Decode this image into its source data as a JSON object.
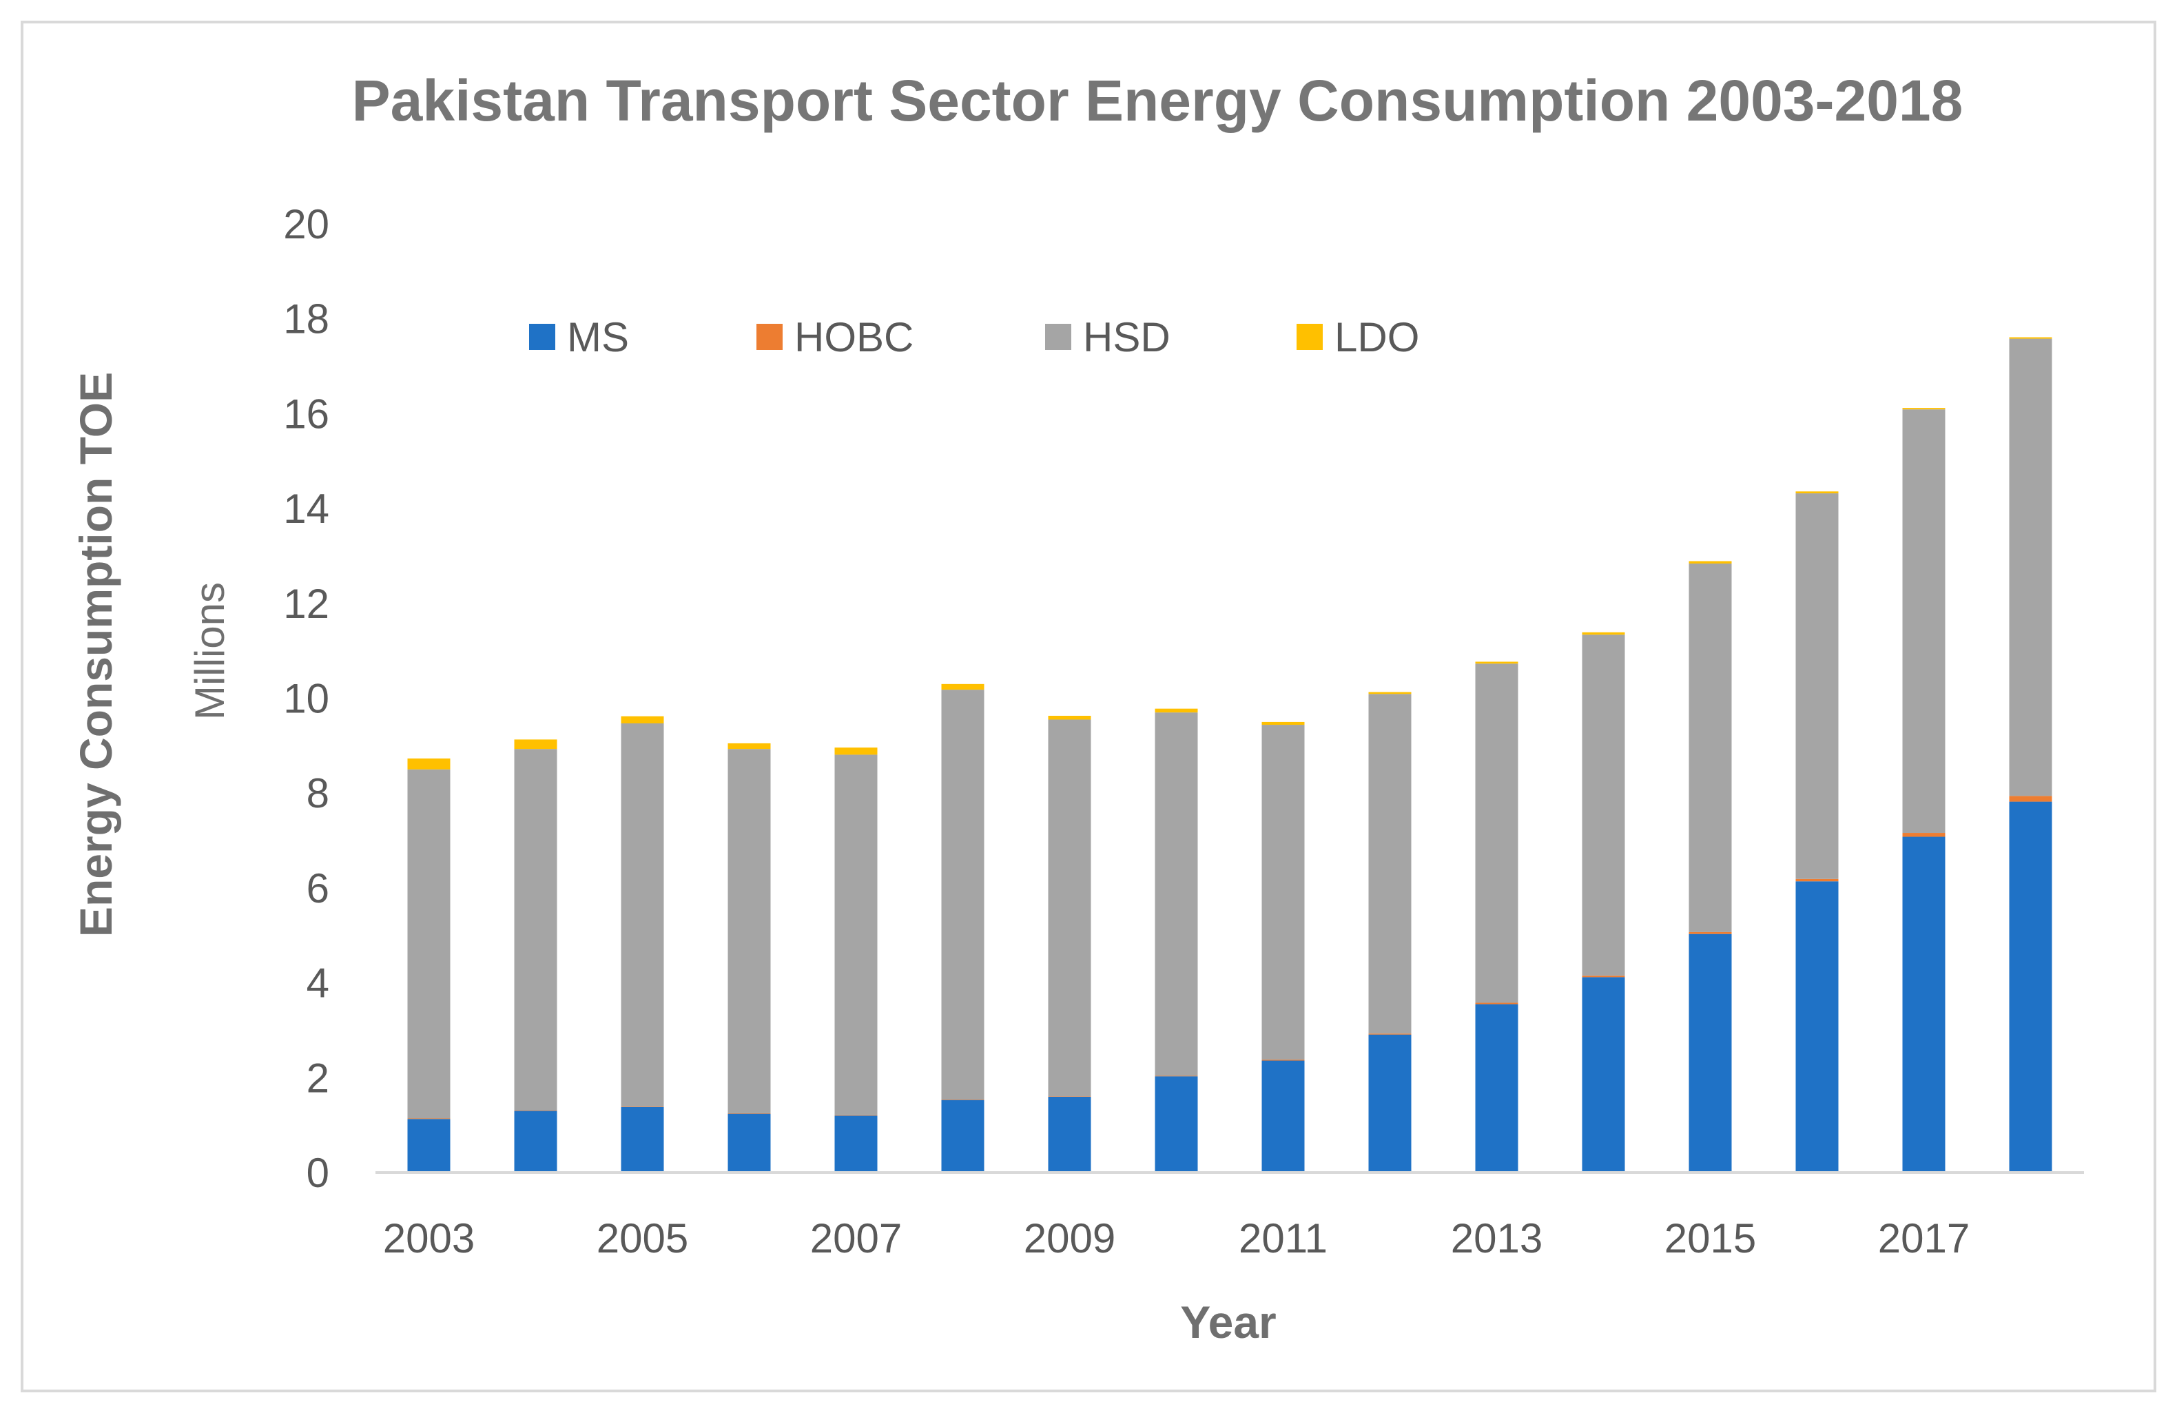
{
  "chart_data": {
    "type": "bar",
    "stacked": true,
    "title": "Pakistan Transport Sector Energy Consumption 2003-2018",
    "xlabel": "Year",
    "ylabel": "Energy Consumption TOE",
    "y_unit_label": "Millions",
    "ylim": [
      0,
      20
    ],
    "yticks": [
      0,
      2,
      4,
      6,
      8,
      10,
      12,
      14,
      16,
      18,
      20
    ],
    "grid": false,
    "legend_position": "top",
    "categories": [
      "2003",
      "2004",
      "2005",
      "2006",
      "2007",
      "2008",
      "2009",
      "2010",
      "2011",
      "2012",
      "2013",
      "2014",
      "2015",
      "2016",
      "2017",
      "2018"
    ],
    "x_tick_labels": [
      "2003",
      "2005",
      "2007",
      "2009",
      "2011",
      "2013",
      "2015",
      "2017"
    ],
    "series": [
      {
        "name": "MS",
        "color": "#1f72c6",
        "values": [
          1.13,
          1.3,
          1.38,
          1.24,
          1.2,
          1.53,
          1.6,
          2.03,
          2.36,
          2.91,
          3.55,
          4.12,
          5.03,
          6.14,
          7.08,
          7.82
        ]
      },
      {
        "name": "HOBC",
        "color": "#ed7d31",
        "values": [
          0.01,
          0.01,
          0.01,
          0.01,
          0.01,
          0.01,
          0.01,
          0.01,
          0.02,
          0.02,
          0.03,
          0.03,
          0.04,
          0.05,
          0.08,
          0.12
        ]
      },
      {
        "name": "HSD",
        "color": "#a5a5a5",
        "values": [
          7.36,
          7.62,
          8.08,
          7.68,
          7.6,
          8.64,
          7.94,
          7.66,
          7.06,
          7.16,
          7.15,
          7.19,
          7.77,
          8.13,
          8.93,
          9.64
        ]
      },
      {
        "name": "LDO",
        "color": "#ffc000",
        "values": [
          0.23,
          0.2,
          0.15,
          0.12,
          0.15,
          0.12,
          0.08,
          0.08,
          0.06,
          0.04,
          0.04,
          0.05,
          0.05,
          0.04,
          0.03,
          0.03
        ]
      }
    ]
  },
  "colors": {
    "axis": "#d9d9d9",
    "frame": "#d9d9d9",
    "text": "#595959"
  }
}
